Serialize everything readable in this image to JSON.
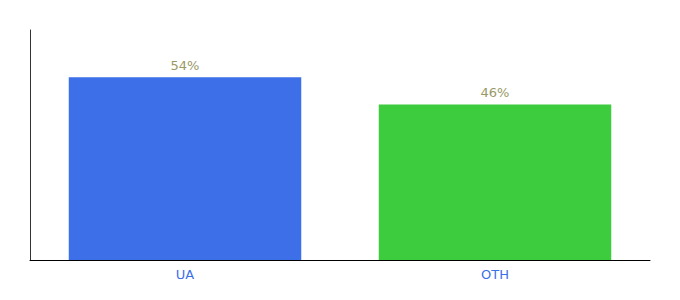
{
  "chart_data": {
    "type": "bar",
    "categories": [
      "UA",
      "OTH"
    ],
    "values": [
      54,
      46
    ],
    "value_labels": [
      "54%",
      "46%"
    ],
    "colors": [
      "#3d6fe8",
      "#3dcc3d"
    ],
    "data_labels": true,
    "ylim": [
      0,
      68
    ],
    "grid": false,
    "tick_labels": "x"
  }
}
